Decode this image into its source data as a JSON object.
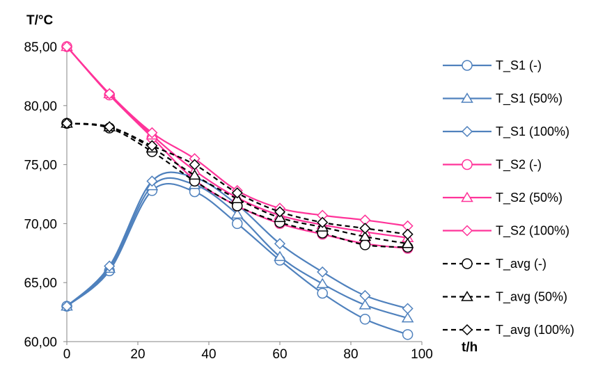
{
  "chart_data": {
    "type": "line",
    "title": "",
    "xlabel": "t/h",
    "ylabel": "T/°C",
    "xlim": [
      0,
      100
    ],
    "ylim": [
      60,
      85
    ],
    "x_ticks": [
      "0",
      "20",
      "40",
      "60",
      "80",
      "100"
    ],
    "y_ticks": [
      "60,00",
      "65,00",
      "70,00",
      "75,00",
      "80,00",
      "85,00"
    ],
    "x_tick_values": [
      0,
      20,
      40,
      60,
      80,
      100
    ],
    "y_tick_values": [
      60,
      65,
      70,
      75,
      80,
      85
    ],
    "grid": false,
    "legend_position": "right",
    "x": [
      0,
      12,
      24,
      36,
      48,
      60,
      72,
      84,
      96
    ],
    "series": [
      {
        "name": "T_S1 (-)",
        "color": "#4f81bd",
        "dash": "solid",
        "marker": "circle",
        "values": [
          63.0,
          66.0,
          72.8,
          72.7,
          70.0,
          66.9,
          64.1,
          61.9,
          60.6
        ]
      },
      {
        "name": "T_S1 (50%)",
        "color": "#4f81bd",
        "dash": "solid",
        "marker": "triangle",
        "values": [
          63.0,
          66.2,
          73.2,
          73.3,
          70.8,
          67.2,
          64.9,
          63.1,
          62.0
        ]
      },
      {
        "name": "T_S1 (100%)",
        "color": "#4f81bd",
        "dash": "solid",
        "marker": "diamond",
        "values": [
          63.0,
          66.4,
          73.6,
          73.9,
          71.6,
          68.3,
          65.9,
          63.9,
          62.8
        ]
      },
      {
        "name": "T_S2 (-)",
        "color": "#ff3399",
        "dash": "solid",
        "marker": "circle",
        "values": [
          85.0,
          80.9,
          77.3,
          73.7,
          71.5,
          70.0,
          69.1,
          68.3,
          67.9
        ]
      },
      {
        "name": "T_S2 (50%)",
        "color": "#ff3399",
        "dash": "solid",
        "marker": "triangle",
        "values": [
          85.0,
          81.0,
          77.5,
          74.5,
          72.2,
          70.7,
          69.9,
          69.3,
          68.8
        ]
      },
      {
        "name": "T_S2 (100%)",
        "color": "#ff3399",
        "dash": "solid",
        "marker": "diamond",
        "values": [
          85.0,
          81.0,
          77.7,
          75.5,
          72.8,
          71.3,
          70.7,
          70.3,
          69.8
        ]
      },
      {
        "name": "T_avg (-)",
        "color": "#000000",
        "dash": "dashed",
        "marker": "circle",
        "values": [
          78.5,
          78.1,
          76.1,
          73.6,
          71.5,
          70.1,
          69.2,
          68.2,
          68.0
        ]
      },
      {
        "name": "T_avg (50%)",
        "color": "#000000",
        "dash": "dashed",
        "marker": "triangle",
        "values": [
          78.5,
          78.2,
          76.4,
          74.1,
          72.1,
          70.5,
          69.7,
          68.9,
          68.3
        ]
      },
      {
        "name": "T_avg (100%)",
        "color": "#000000",
        "dash": "dashed",
        "marker": "diamond",
        "values": [
          78.5,
          78.2,
          76.6,
          75.0,
          72.6,
          71.0,
          70.1,
          69.6,
          69.1
        ]
      }
    ]
  }
}
